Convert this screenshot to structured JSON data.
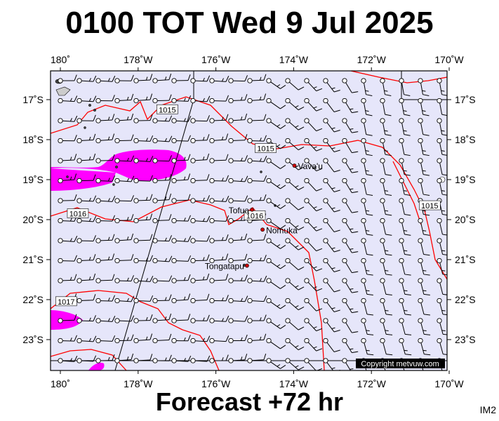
{
  "header": {
    "title": "0100 TOT Wed 9 Jul 2025"
  },
  "footer": {
    "forecast_label": "Forecast +72 hr",
    "map_code": "IM2"
  },
  "axes": {
    "lon_labels": [
      "180˚",
      "178˚W",
      "176˚W",
      "174˚W",
      "172˚W",
      "170˚W"
    ],
    "lat_labels": [
      "17˚S",
      "18˚S",
      "19˚S",
      "20˚S",
      "21˚S",
      "22˚S",
      "23˚S"
    ]
  },
  "places": [
    {
      "name": "Vava'u",
      "lon": -173.98,
      "lat": -18.65
    },
    {
      "name": "Tofua",
      "lon": -175.07,
      "lat": -19.75
    },
    {
      "name": "Nomuka",
      "lon": -174.8,
      "lat": -20.25
    },
    {
      "name": "Tongatapu",
      "lon": -175.2,
      "lat": -21.15
    }
  ],
  "isobars": [
    {
      "label": "1015",
      "label_lon": -177.25,
      "label_lat": -17.25
    },
    {
      "label": "1015",
      "label_lon": -174.72,
      "label_lat": -18.22
    },
    {
      "label": "1016",
      "label_lon": -179.55,
      "label_lat": -19.85
    },
    {
      "label": "1016",
      "label_lon": -175.0,
      "label_lat": -19.9
    },
    {
      "label": "1015",
      "label_lon": -170.5,
      "label_lat": -19.65
    },
    {
      "label": "1017",
      "label_lon": -179.85,
      "label_lat": -22.05
    }
  ],
  "copyright": "Copyright metvuw.com",
  "colors": {
    "ocean": "#e6e6fa",
    "isobar": "#ff0000",
    "rain": "#ff00ff",
    "barb": "#000000",
    "place": "#cc0000"
  }
}
